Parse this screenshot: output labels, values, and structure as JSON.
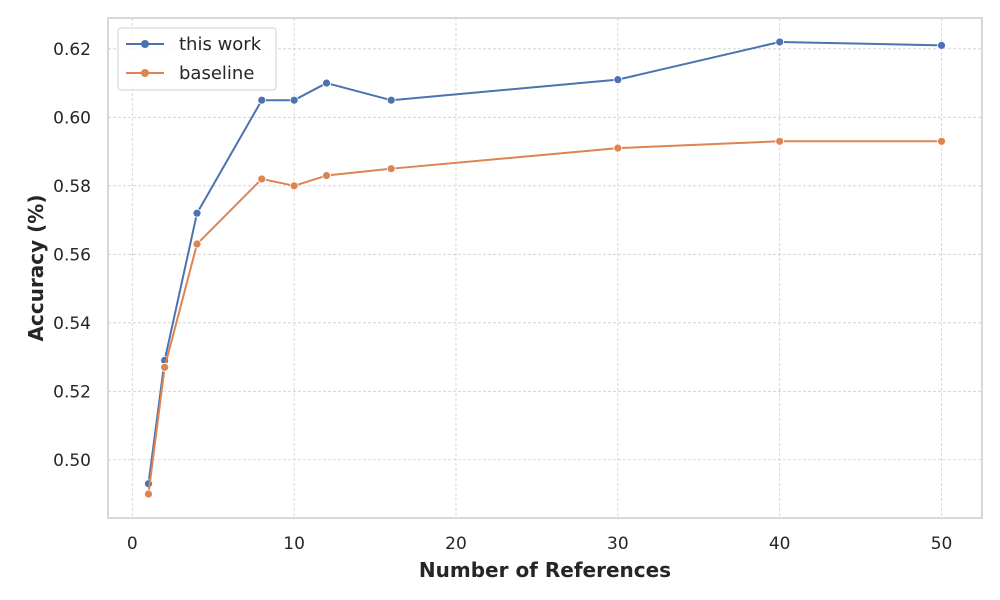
{
  "chart_data": {
    "type": "line",
    "xlabel": "Number of References",
    "ylabel": "Accuracy (%)",
    "xlim": [
      -1.5,
      52.5
    ],
    "ylim": [
      0.483,
      0.629
    ],
    "x_ticks": [
      0,
      10,
      20,
      30,
      40,
      50
    ],
    "y_ticks": [
      0.5,
      0.52,
      0.54,
      0.56,
      0.58,
      0.6,
      0.62
    ],
    "grid": true,
    "legend_position": "upper-left",
    "series": [
      {
        "name": "this work",
        "color": "#4c72b0",
        "x": [
          1,
          2,
          4,
          8,
          10,
          12,
          16,
          30,
          40,
          50
        ],
        "y": [
          0.493,
          0.529,
          0.572,
          0.605,
          0.605,
          0.61,
          0.605,
          0.611,
          0.622,
          0.621
        ]
      },
      {
        "name": "baseline",
        "color": "#dd8452",
        "x": [
          1,
          2,
          4,
          8,
          10,
          12,
          16,
          30,
          40,
          50
        ],
        "y": [
          0.49,
          0.527,
          0.563,
          0.582,
          0.58,
          0.583,
          0.585,
          0.591,
          0.593,
          0.593
        ]
      }
    ]
  }
}
